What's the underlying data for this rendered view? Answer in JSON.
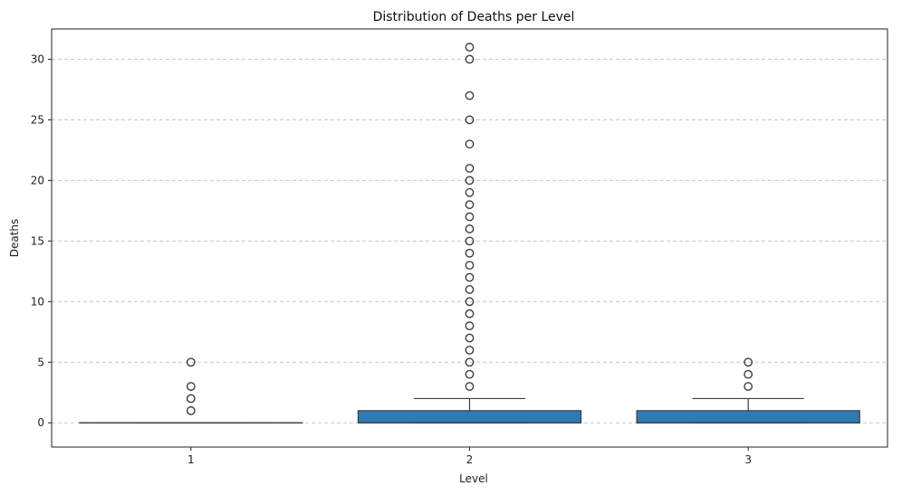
{
  "chart_data": {
    "type": "box",
    "title": "Distribution of Deaths per Level",
    "xlabel": "Level",
    "ylabel": "Deaths",
    "categories": [
      "1",
      "2",
      "3"
    ],
    "ylim": [
      -2,
      32.5
    ],
    "yticks": [
      0,
      5,
      10,
      15,
      20,
      25,
      30
    ],
    "grid": "y-dashed",
    "box_color": "#2e7bb4",
    "boxes": [
      {
        "category": "1",
        "q1": 0,
        "median": 0,
        "q3": 0,
        "whisker_low": 0,
        "whisker_high": 0,
        "outliers": [
          1,
          2,
          3,
          5
        ]
      },
      {
        "category": "2",
        "q1": 0,
        "median": 0,
        "q3": 1,
        "whisker_low": 0,
        "whisker_high": 2,
        "outliers": [
          3,
          4,
          5,
          6,
          7,
          8,
          9,
          10,
          11,
          12,
          13,
          14,
          15,
          16,
          17,
          18,
          19,
          20,
          21,
          23,
          25,
          27,
          30,
          31
        ]
      },
      {
        "category": "3",
        "q1": 0,
        "median": 0,
        "q3": 1,
        "whisker_low": 0,
        "whisker_high": 2,
        "outliers": [
          3,
          4,
          5
        ]
      }
    ]
  }
}
